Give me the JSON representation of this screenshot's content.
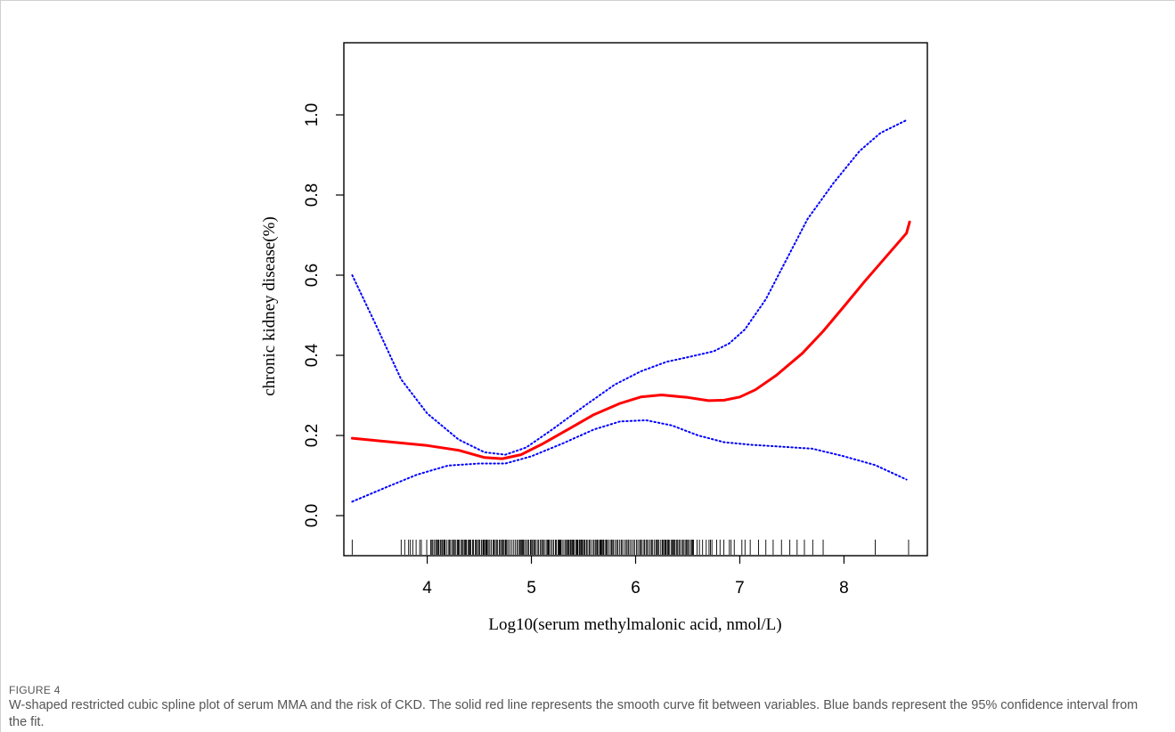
{
  "figure": {
    "label": "FIGURE 4",
    "caption": "W-shaped restricted cubic spline plot of serum MMA and the risk of CKD. The solid red line represents the smooth curve fit between variables. Blue bands represent the 95% confidence interval from the fit."
  },
  "chart_data": {
    "type": "line",
    "title": "",
    "xlabel": "Log10(serum methylmalonic acid, nmol/L)",
    "ylabel": "chronic kidney disease(%)",
    "xlim": [
      3.2,
      8.8
    ],
    "ylim": [
      -0.1,
      1.18
    ],
    "x_ticks": [
      4,
      5,
      6,
      7,
      8
    ],
    "y_ticks": [
      0.0,
      0.2,
      0.4,
      0.6,
      0.8,
      1.0
    ],
    "x_tick_labels": [
      "4",
      "5",
      "6",
      "7",
      "8"
    ],
    "y_tick_labels": [
      "0.0",
      "0.2",
      "0.4",
      "0.6",
      "0.8",
      "1.0"
    ],
    "grid": false,
    "legend": "none",
    "series": [
      {
        "role": "fit",
        "color": "#ff0000",
        "style": "solid",
        "points": [
          [
            3.28,
            0.193
          ],
          [
            3.6,
            0.185
          ],
          [
            4.0,
            0.175
          ],
          [
            4.3,
            0.163
          ],
          [
            4.55,
            0.145
          ],
          [
            4.72,
            0.142
          ],
          [
            4.9,
            0.152
          ],
          [
            5.1,
            0.178
          ],
          [
            5.35,
            0.215
          ],
          [
            5.6,
            0.252
          ],
          [
            5.85,
            0.28
          ],
          [
            6.05,
            0.296
          ],
          [
            6.25,
            0.301
          ],
          [
            6.5,
            0.295
          ],
          [
            6.7,
            0.287
          ],
          [
            6.85,
            0.288
          ],
          [
            7.0,
            0.296
          ],
          [
            7.15,
            0.314
          ],
          [
            7.35,
            0.35
          ],
          [
            7.6,
            0.405
          ],
          [
            7.8,
            0.46
          ],
          [
            8.0,
            0.522
          ],
          [
            8.2,
            0.585
          ],
          [
            8.4,
            0.645
          ],
          [
            8.6,
            0.705
          ],
          [
            8.63,
            0.733
          ]
        ]
      },
      {
        "role": "ci_upper",
        "color": "#0000ff",
        "style": "dotted",
        "points": [
          [
            3.28,
            0.6
          ],
          [
            3.5,
            0.48
          ],
          [
            3.75,
            0.34
          ],
          [
            4.0,
            0.255
          ],
          [
            4.3,
            0.19
          ],
          [
            4.55,
            0.158
          ],
          [
            4.75,
            0.152
          ],
          [
            4.95,
            0.17
          ],
          [
            5.2,
            0.215
          ],
          [
            5.5,
            0.272
          ],
          [
            5.8,
            0.327
          ],
          [
            6.05,
            0.36
          ],
          [
            6.3,
            0.384
          ],
          [
            6.55,
            0.398
          ],
          [
            6.75,
            0.41
          ],
          [
            6.9,
            0.43
          ],
          [
            7.05,
            0.465
          ],
          [
            7.25,
            0.54
          ],
          [
            7.45,
            0.64
          ],
          [
            7.65,
            0.74
          ],
          [
            7.9,
            0.83
          ],
          [
            8.15,
            0.91
          ],
          [
            8.35,
            0.955
          ],
          [
            8.6,
            0.987
          ]
        ]
      },
      {
        "role": "ci_lower",
        "color": "#0000ff",
        "style": "dotted",
        "points": [
          [
            3.28,
            0.035
          ],
          [
            3.6,
            0.07
          ],
          [
            3.9,
            0.102
          ],
          [
            4.2,
            0.125
          ],
          [
            4.5,
            0.13
          ],
          [
            4.75,
            0.13
          ],
          [
            5.0,
            0.148
          ],
          [
            5.3,
            0.18
          ],
          [
            5.6,
            0.215
          ],
          [
            5.85,
            0.235
          ],
          [
            6.1,
            0.238
          ],
          [
            6.35,
            0.225
          ],
          [
            6.6,
            0.2
          ],
          [
            6.85,
            0.183
          ],
          [
            7.1,
            0.177
          ],
          [
            7.4,
            0.172
          ],
          [
            7.7,
            0.167
          ],
          [
            8.0,
            0.148
          ],
          [
            8.3,
            0.126
          ],
          [
            8.6,
            0.09
          ]
        ]
      }
    ],
    "rug": {
      "color": "#000000",
      "dense_range": [
        3.75,
        6.95
      ],
      "sparse_values": [
        3.28,
        7.02,
        7.05,
        7.1,
        7.18,
        7.25,
        7.32,
        7.4,
        7.48,
        7.55,
        7.62,
        7.7,
        7.8,
        8.3,
        8.62
      ]
    }
  }
}
